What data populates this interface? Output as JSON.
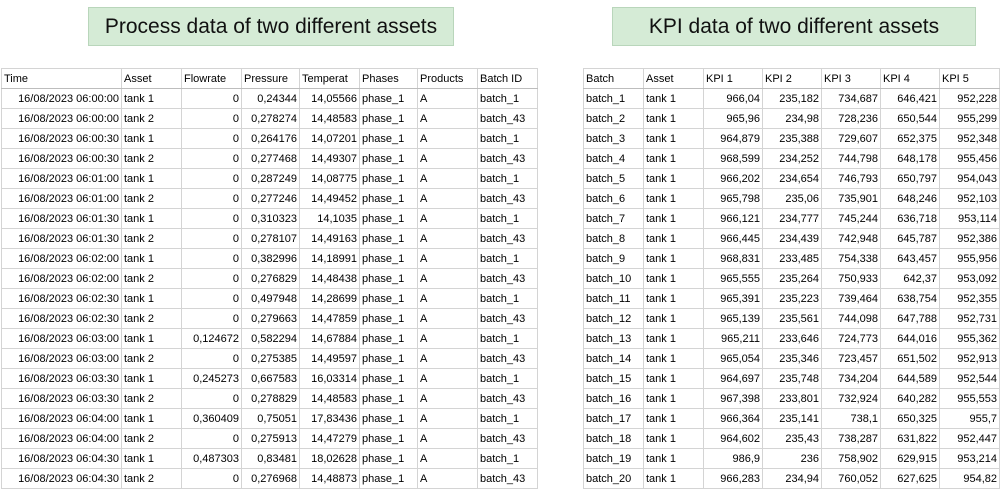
{
  "banners": {
    "left": "Process data of two different assets",
    "right": "KPI data of two different assets"
  },
  "process_table": {
    "headers": [
      "Time",
      "Asset",
      "Flowrate",
      "Pressure",
      "Temperat",
      "Phases",
      "Products",
      "Batch ID"
    ],
    "rows": [
      [
        "16/08/2023 06:00:00",
        "tank 1",
        "0",
        "0,24344",
        "14,05566",
        "phase_1",
        "A",
        "batch_1"
      ],
      [
        "16/08/2023 06:00:00",
        "tank 2",
        "0",
        "0,278274",
        "14,48583",
        "phase_1",
        "A",
        "batch_43"
      ],
      [
        "16/08/2023 06:00:30",
        "tank 1",
        "0",
        "0,264176",
        "14,07201",
        "phase_1",
        "A",
        "batch_1"
      ],
      [
        "16/08/2023 06:00:30",
        "tank 2",
        "0",
        "0,277468",
        "14,49307",
        "phase_1",
        "A",
        "batch_43"
      ],
      [
        "16/08/2023 06:01:00",
        "tank 1",
        "0",
        "0,287249",
        "14,08775",
        "phase_1",
        "A",
        "batch_1"
      ],
      [
        "16/08/2023 06:01:00",
        "tank 2",
        "0",
        "0,277246",
        "14,49452",
        "phase_1",
        "A",
        "batch_43"
      ],
      [
        "16/08/2023 06:01:30",
        "tank 1",
        "0",
        "0,310323",
        "14,1035",
        "phase_1",
        "A",
        "batch_1"
      ],
      [
        "16/08/2023 06:01:30",
        "tank 2",
        "0",
        "0,278107",
        "14,49163",
        "phase_1",
        "A",
        "batch_43"
      ],
      [
        "16/08/2023 06:02:00",
        "tank 1",
        "0",
        "0,382996",
        "14,18991",
        "phase_1",
        "A",
        "batch_1"
      ],
      [
        "16/08/2023 06:02:00",
        "tank 2",
        "0",
        "0,276829",
        "14,48438",
        "phase_1",
        "A",
        "batch_43"
      ],
      [
        "16/08/2023 06:02:30",
        "tank 1",
        "0",
        "0,497948",
        "14,28699",
        "phase_1",
        "A",
        "batch_1"
      ],
      [
        "16/08/2023 06:02:30",
        "tank 2",
        "0",
        "0,279663",
        "14,47859",
        "phase_1",
        "A",
        "batch_43"
      ],
      [
        "16/08/2023 06:03:00",
        "tank 1",
        "0,124672",
        "0,582294",
        "14,67884",
        "phase_1",
        "A",
        "batch_1"
      ],
      [
        "16/08/2023 06:03:00",
        "tank 2",
        "0",
        "0,275385",
        "14,49597",
        "phase_1",
        "A",
        "batch_43"
      ],
      [
        "16/08/2023 06:03:30",
        "tank 1",
        "0,245273",
        "0,667583",
        "16,03314",
        "phase_1",
        "A",
        "batch_1"
      ],
      [
        "16/08/2023 06:03:30",
        "tank 2",
        "0",
        "0,278829",
        "14,48583",
        "phase_1",
        "A",
        "batch_43"
      ],
      [
        "16/08/2023 06:04:00",
        "tank 1",
        "0,360409",
        "0,75051",
        "17,83436",
        "phase_1",
        "A",
        "batch_1"
      ],
      [
        "16/08/2023 06:04:00",
        "tank 2",
        "0",
        "0,275913",
        "14,47279",
        "phase_1",
        "A",
        "batch_43"
      ],
      [
        "16/08/2023 06:04:30",
        "tank 1",
        "0,487303",
        "0,83481",
        "18,02628",
        "phase_1",
        "A",
        "batch_1"
      ],
      [
        "16/08/2023 06:04:30",
        "tank 2",
        "0",
        "0,276968",
        "14,48873",
        "phase_1",
        "A",
        "batch_43"
      ]
    ]
  },
  "kpi_table": {
    "headers": [
      "Batch",
      "Asset",
      "KPI 1",
      "KPI 2",
      "KPI 3",
      "KPI 4",
      "KPI 5"
    ],
    "rows": [
      [
        "batch_1",
        "tank 1",
        "966,04",
        "235,182",
        "734,687",
        "646,421",
        "952,228"
      ],
      [
        "batch_2",
        "tank 1",
        "965,96",
        "234,98",
        "728,236",
        "650,544",
        "955,299"
      ],
      [
        "batch_3",
        "tank 1",
        "964,879",
        "235,388",
        "729,607",
        "652,375",
        "952,348"
      ],
      [
        "batch_4",
        "tank 1",
        "968,599",
        "234,252",
        "744,798",
        "648,178",
        "955,456"
      ],
      [
        "batch_5",
        "tank 1",
        "966,202",
        "234,654",
        "746,793",
        "650,797",
        "954,043"
      ],
      [
        "batch_6",
        "tank 1",
        "965,798",
        "235,06",
        "735,901",
        "648,246",
        "952,103"
      ],
      [
        "batch_7",
        "tank 1",
        "966,121",
        "234,777",
        "745,244",
        "636,718",
        "953,114"
      ],
      [
        "batch_8",
        "tank 1",
        "966,445",
        "234,439",
        "742,948",
        "645,787",
        "952,386"
      ],
      [
        "batch_9",
        "tank 1",
        "968,831",
        "233,485",
        "754,338",
        "643,457",
        "955,956"
      ],
      [
        "batch_10",
        "tank 1",
        "965,555",
        "235,264",
        "750,933",
        "642,37",
        "953,092"
      ],
      [
        "batch_11",
        "tank 1",
        "965,391",
        "235,223",
        "739,464",
        "638,754",
        "952,355"
      ],
      [
        "batch_12",
        "tank 1",
        "965,139",
        "235,561",
        "744,098",
        "647,788",
        "952,731"
      ],
      [
        "batch_13",
        "tank 1",
        "965,211",
        "233,646",
        "724,773",
        "644,016",
        "955,362"
      ],
      [
        "batch_14",
        "tank 1",
        "965,054",
        "235,346",
        "723,457",
        "651,502",
        "952,913"
      ],
      [
        "batch_15",
        "tank 1",
        "964,697",
        "235,748",
        "734,204",
        "644,589",
        "952,544"
      ],
      [
        "batch_16",
        "tank 1",
        "967,398",
        "233,801",
        "732,924",
        "640,282",
        "955,553"
      ],
      [
        "batch_17",
        "tank 1",
        "966,364",
        "235,141",
        "738,1",
        "650,325",
        "955,7"
      ],
      [
        "batch_18",
        "tank 1",
        "964,602",
        "235,43",
        "738,287",
        "631,822",
        "952,447"
      ],
      [
        "batch_19",
        "tank 1",
        "986,9",
        "236",
        "758,902",
        "629,915",
        "953,214"
      ],
      [
        "batch_20",
        "tank 1",
        "966,283",
        "234,94",
        "760,052",
        "627,625",
        "954,82"
      ]
    ]
  }
}
